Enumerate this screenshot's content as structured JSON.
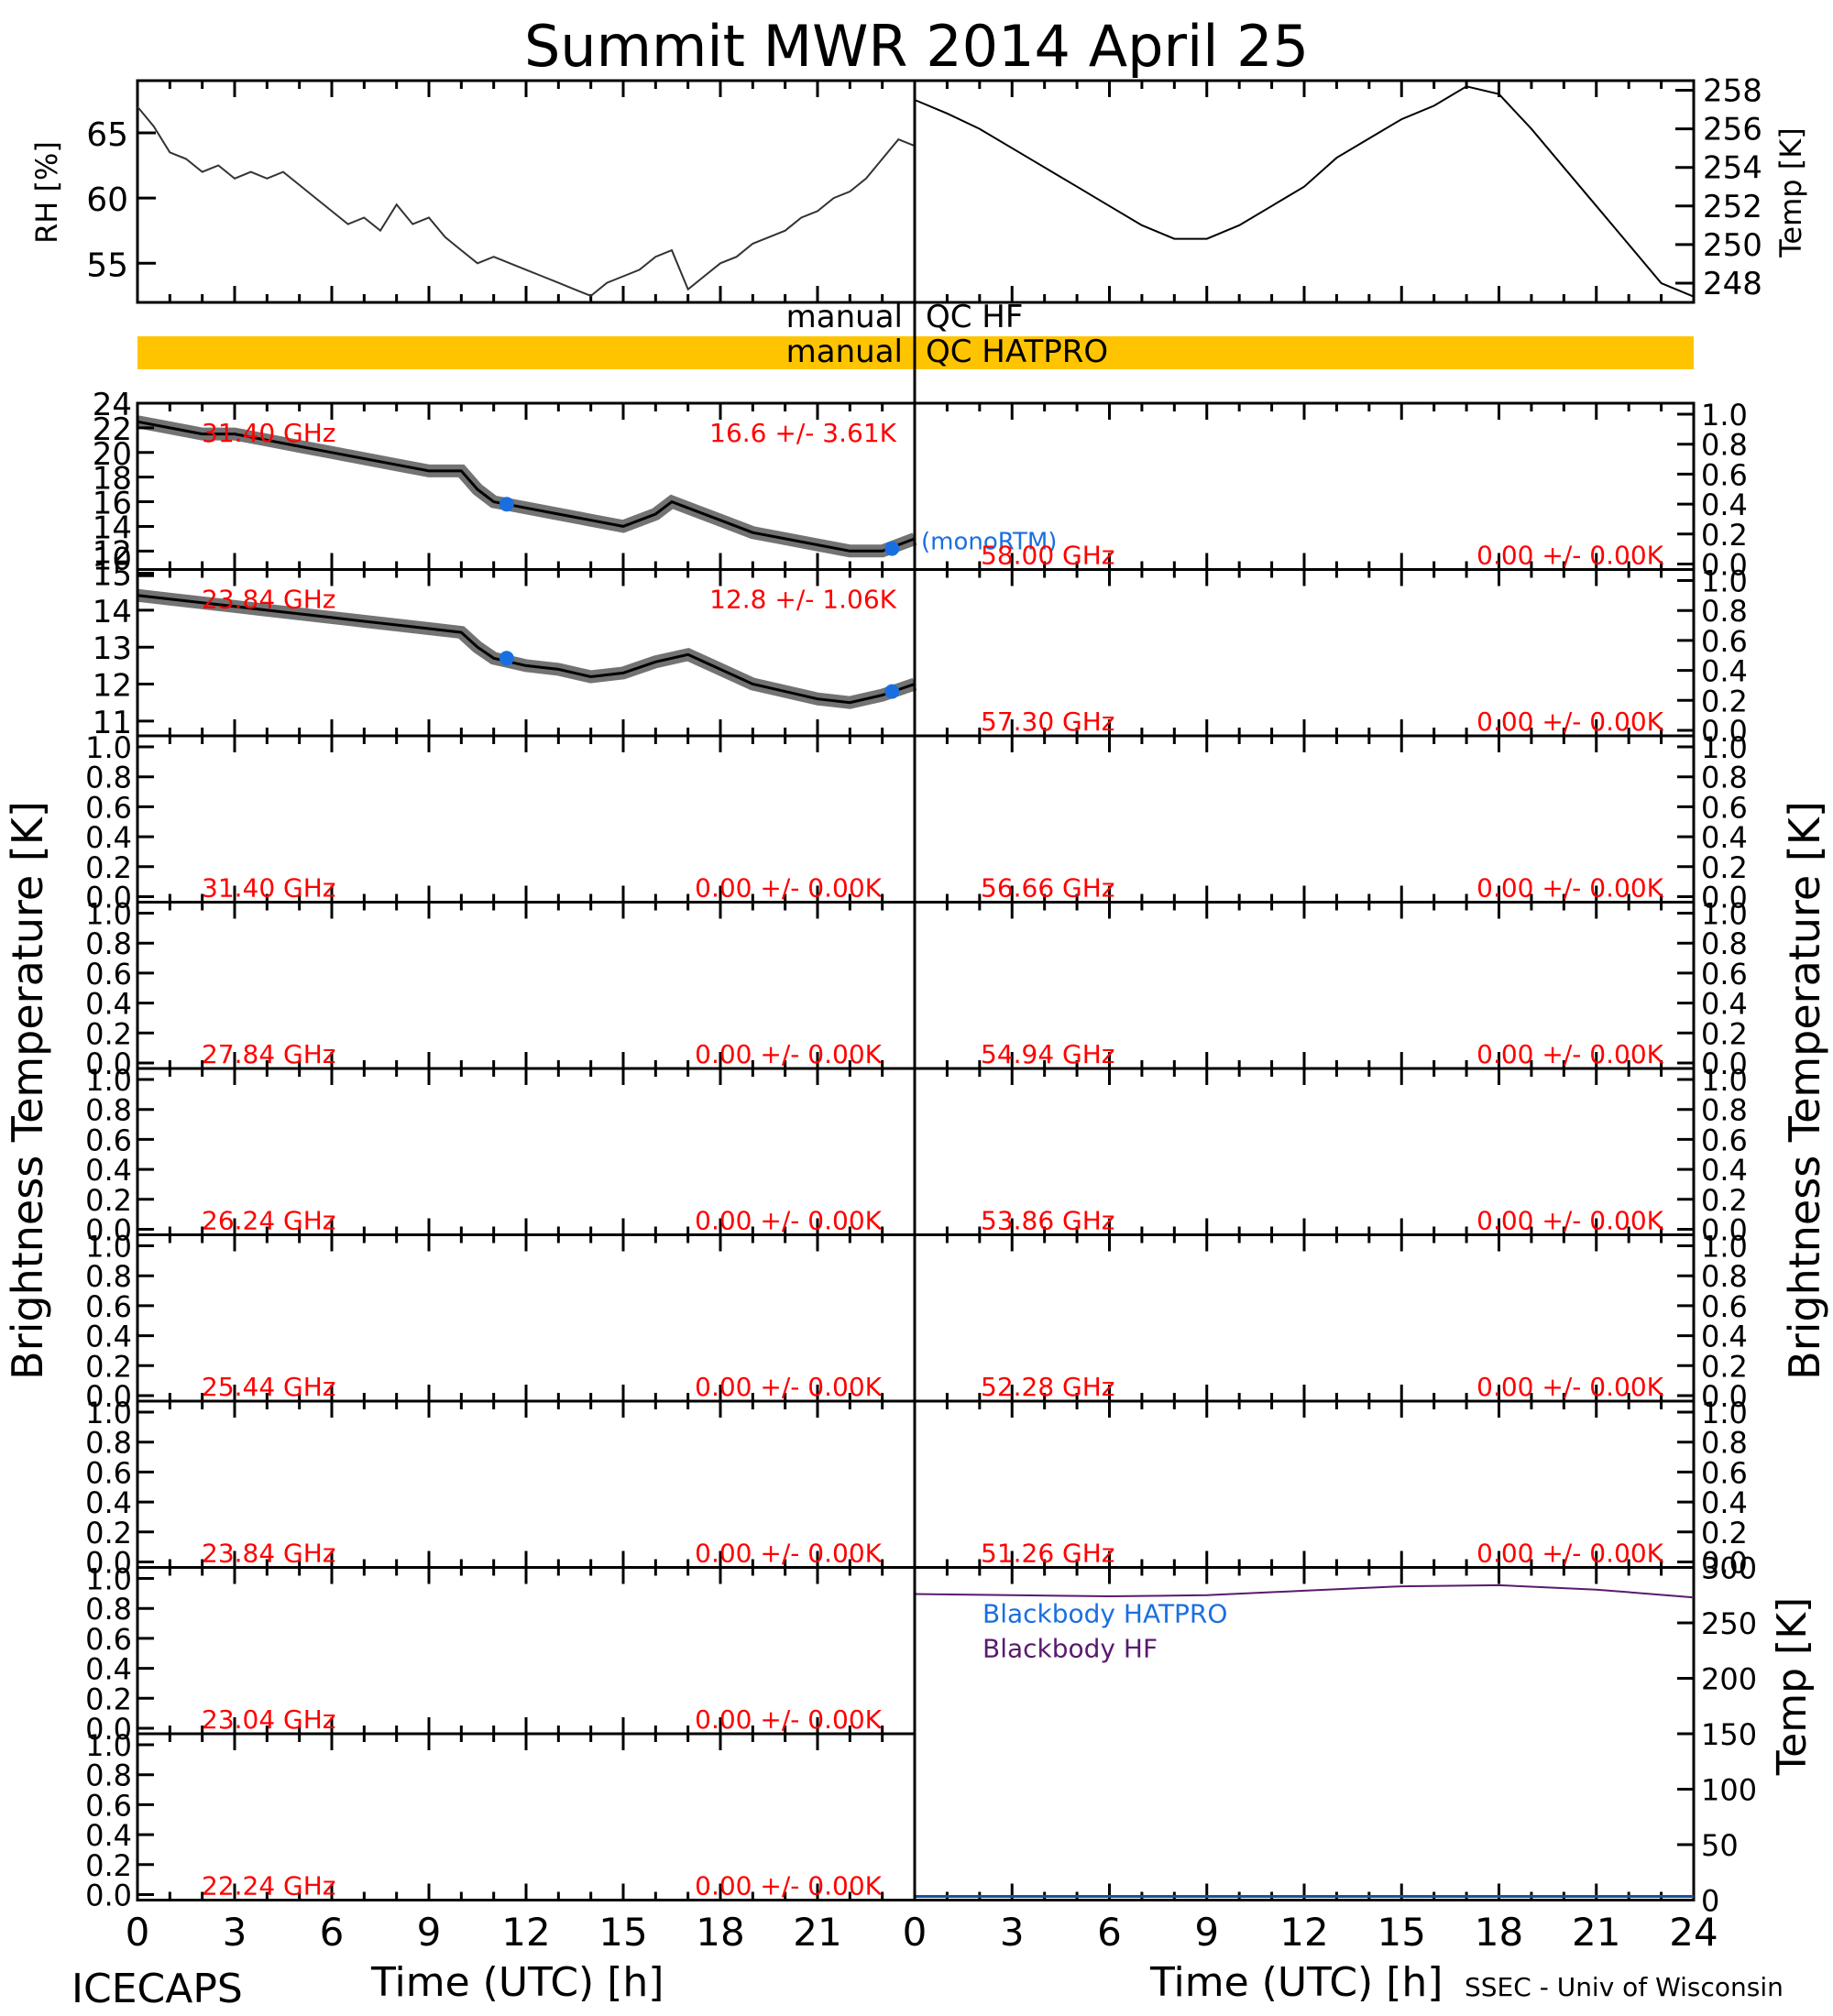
{
  "title": "Summit MWR 2014 April 25",
  "footer": {
    "left": "ICECAPS",
    "xlabel_left": "Time (UTC) [h]",
    "xlabel_right": "Time (UTC) [h]",
    "credit": "SSEC - Univ of Wisconsin"
  },
  "colors": {
    "annotation": "#ff0000",
    "sonde": "#1a6fe0",
    "blackbody_hatpro": "#1a6fe0",
    "blackbody_hf": "#5a1a6e",
    "qc_bar": "#ffc400",
    "trace": "#000000"
  },
  "qc": {
    "hf_label_left": "manual",
    "hf_label_right": "QC HF",
    "hatpro_label_left": "manual",
    "hatpro_label_right": "QC HATPRO"
  },
  "legend": {
    "sonde": "(monoRTM)",
    "bb_hatpro": "Blackbody HATPRO",
    "bb_hf": "Blackbody HF"
  },
  "axes": {
    "left_ylabel": "Brightness Temperature [K]",
    "right_ylabel": "Brightness Temperature [K]",
    "rh_ylabel": "RH [%]",
    "temp_ylabel": "Temp [K]",
    "bb_ylabel": "Temp [K]"
  },
  "chart_data": [
    {
      "type": "line",
      "name": "rh",
      "ylabel": "RH [%]",
      "ylim": [
        52,
        69
      ],
      "yticks": [
        55,
        60,
        65
      ],
      "xlim": [
        0,
        12
      ],
      "points": [
        [
          0,
          67
        ],
        [
          0.5,
          65.5
        ],
        [
          1,
          63.5
        ],
        [
          1.5,
          63
        ],
        [
          2,
          62
        ],
        [
          2.5,
          62.5
        ],
        [
          3,
          61.5
        ],
        [
          3.5,
          62
        ],
        [
          4,
          61.5
        ],
        [
          4.5,
          62
        ],
        [
          5,
          61
        ],
        [
          5.5,
          60
        ],
        [
          6,
          59
        ],
        [
          6.5,
          58
        ],
        [
          7,
          58.5
        ],
        [
          7.5,
          57.5
        ],
        [
          8,
          59.5
        ],
        [
          8.5,
          58
        ],
        [
          9,
          58.5
        ],
        [
          9.5,
          57
        ],
        [
          10,
          56
        ],
        [
          10.5,
          55
        ],
        [
          11,
          55.5
        ],
        [
          11.5,
          55
        ],
        [
          12,
          54.5
        ]
      ]
    },
    {
      "type": "line",
      "name": "rh_b",
      "ylim": [
        52,
        69
      ],
      "xlim": [
        12,
        24
      ],
      "points": [
        [
          12,
          54.5
        ],
        [
          12.5,
          54
        ],
        [
          13,
          53.5
        ],
        [
          13.5,
          53
        ],
        [
          14,
          52.5
        ],
        [
          14.5,
          53.5
        ],
        [
          15,
          54
        ],
        [
          15.5,
          54.5
        ],
        [
          16,
          55.5
        ],
        [
          16.5,
          56
        ],
        [
          17,
          53
        ],
        [
          17.5,
          54
        ],
        [
          18,
          55
        ],
        [
          18.5,
          55.5
        ],
        [
          19,
          56.5
        ],
        [
          19.5,
          57
        ],
        [
          20,
          57.5
        ],
        [
          20.5,
          58.5
        ],
        [
          21,
          59
        ],
        [
          21.5,
          60
        ],
        [
          22,
          60.5
        ],
        [
          22.5,
          61.5
        ],
        [
          23,
          63
        ],
        [
          23.5,
          64.5
        ],
        [
          24,
          64
        ]
      ]
    },
    {
      "type": "line",
      "name": "temp",
      "ylabel": "Temp [K]",
      "ylim": [
        247,
        258.5
      ],
      "yticks": [
        248,
        250,
        252,
        254,
        256,
        258
      ],
      "points": [
        [
          0,
          257.5
        ],
        [
          1,
          256.8
        ],
        [
          2,
          256
        ],
        [
          3,
          255
        ],
        [
          4,
          254
        ],
        [
          5,
          253
        ],
        [
          6,
          252
        ],
        [
          7,
          251
        ],
        [
          8,
          250.3
        ],
        [
          9,
          250.3
        ],
        [
          10,
          251
        ],
        [
          11,
          252
        ],
        [
          12,
          253
        ],
        [
          13,
          254.5
        ],
        [
          14,
          255.5
        ],
        [
          15,
          256.5
        ],
        [
          16,
          257.2
        ],
        [
          17,
          258.2
        ],
        [
          18,
          257.8
        ],
        [
          19,
          256
        ],
        [
          20,
          254
        ],
        [
          21,
          252
        ],
        [
          22,
          250
        ],
        [
          23,
          248
        ],
        [
          24,
          247.3
        ]
      ]
    },
    {
      "type": "line",
      "name": "tb_31",
      "label": "31.40 GHz",
      "stats": "16.6 +/-  3.61K",
      "ylim": [
        10.5,
        24
      ],
      "yticks": [
        10,
        12,
        14,
        16,
        18,
        20,
        22,
        24
      ],
      "points": [
        [
          0,
          22.5
        ],
        [
          1,
          22
        ],
        [
          2,
          21.5
        ],
        [
          3,
          21.5
        ],
        [
          4,
          21
        ],
        [
          5,
          20.5
        ],
        [
          6,
          20
        ],
        [
          7,
          19.5
        ],
        [
          8,
          19
        ],
        [
          9,
          18.5
        ],
        [
          10,
          18.5
        ],
        [
          10.5,
          17
        ],
        [
          11,
          16
        ],
        [
          12,
          15.5
        ],
        [
          13,
          15
        ],
        [
          14,
          14.5
        ],
        [
          15,
          14
        ],
        [
          16,
          15
        ],
        [
          16.5,
          16
        ],
        [
          17,
          15.5
        ],
        [
          18,
          14.5
        ],
        [
          19,
          13.5
        ],
        [
          20,
          13
        ],
        [
          21,
          12.5
        ],
        [
          22,
          12
        ],
        [
          23,
          12
        ],
        [
          24,
          13
        ]
      ],
      "sonde": [
        [
          11.4,
          15.8
        ],
        [
          23.3,
          12.2
        ]
      ]
    },
    {
      "type": "line",
      "name": "tb_23",
      "label": "23.84 GHz",
      "stats": "12.8 +/-  1.06K",
      "ylim": [
        10.6,
        15.1
      ],
      "yticks": [
        11,
        12,
        13,
        14,
        15
      ],
      "points": [
        [
          0,
          14.4
        ],
        [
          1,
          14.3
        ],
        [
          2,
          14.2
        ],
        [
          3,
          14.1
        ],
        [
          4,
          14
        ],
        [
          5,
          13.9
        ],
        [
          6,
          13.8
        ],
        [
          7,
          13.7
        ],
        [
          8,
          13.6
        ],
        [
          9,
          13.5
        ],
        [
          10,
          13.4
        ],
        [
          10.5,
          13
        ],
        [
          11,
          12.7
        ],
        [
          12,
          12.5
        ],
        [
          13,
          12.4
        ],
        [
          14,
          12.2
        ],
        [
          15,
          12.3
        ],
        [
          16,
          12.6
        ],
        [
          17,
          12.8
        ],
        [
          18,
          12.4
        ],
        [
          19,
          12
        ],
        [
          20,
          11.8
        ],
        [
          21,
          11.6
        ],
        [
          22,
          11.5
        ],
        [
          23,
          11.7
        ],
        [
          24,
          12
        ]
      ],
      "sonde": [
        [
          11.4,
          12.7
        ],
        [
          23.3,
          11.8
        ]
      ]
    }
  ],
  "left_panels": [
    {
      "label": "31.40 GHz",
      "stats": "16.6 +/-  3.61K"
    },
    {
      "label": "23.84 GHz",
      "stats": "12.8 +/-  1.06K"
    },
    {
      "label": "31.40 GHz",
      "stats": "0.00 +/-  0.00K"
    },
    {
      "label": "27.84 GHz",
      "stats": "0.00 +/-  0.00K"
    },
    {
      "label": "26.24 GHz",
      "stats": "0.00 +/-  0.00K"
    },
    {
      "label": "25.44 GHz",
      "stats": "0.00 +/-  0.00K"
    },
    {
      "label": "23.84 GHz",
      "stats": "0.00 +/-  0.00K"
    },
    {
      "label": "23.04 GHz",
      "stats": "0.00 +/-  0.00K"
    },
    {
      "label": "22.24 GHz",
      "stats": "0.00 +/-  0.00K"
    }
  ],
  "right_panels": [
    {
      "label": "58.00 GHz",
      "stats": "0.00 +/-  0.00K"
    },
    {
      "label": "57.30 GHz",
      "stats": "0.00 +/-  0.00K"
    },
    {
      "label": "56.66 GHz",
      "stats": "0.00 +/-  0.00K"
    },
    {
      "label": "54.94 GHz",
      "stats": "0.00 +/-  0.00K"
    },
    {
      "label": "53.86 GHz",
      "stats": "0.00 +/-  0.00K"
    },
    {
      "label": "52.28 GHz",
      "stats": "0.00 +/-  0.00K"
    },
    {
      "label": "51.26 GHz",
      "stats": "0.00 +/-  0.00K"
    }
  ],
  "blackbody": {
    "ylim": [
      0,
      300
    ],
    "yticks": [
      0,
      50,
      100,
      150,
      200,
      250,
      300
    ],
    "hf_points": [
      [
        0,
        276
      ],
      [
        3,
        275
      ],
      [
        6,
        274
      ],
      [
        9,
        275
      ],
      [
        12,
        279
      ],
      [
        15,
        283
      ],
      [
        18,
        284
      ],
      [
        21,
        280
      ],
      [
        24,
        273
      ]
    ]
  },
  "norm_yticks": [
    "0.0",
    "0.2",
    "0.4",
    "0.6",
    "0.8",
    "1.0"
  ],
  "xticks": [
    "0",
    "3",
    "6",
    "9",
    "12",
    "15",
    "18",
    "21",
    "24"
  ],
  "xticks_left": [
    "0",
    "3",
    "6",
    "9",
    "12",
    "15",
    "18",
    "21"
  ]
}
